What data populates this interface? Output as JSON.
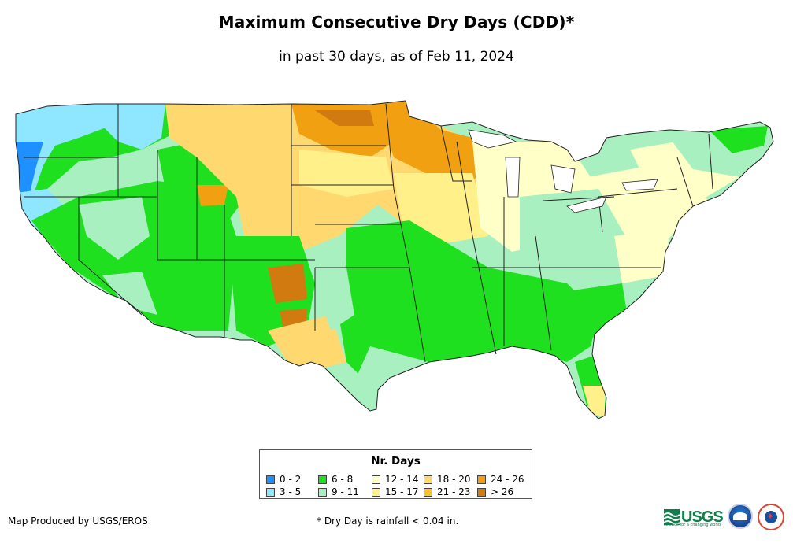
{
  "header": {
    "title": "Maximum Consecutive Dry Days (CDD)*",
    "subtitle": "in past 30 days, as of Feb 11, 2024"
  },
  "legend": {
    "title": "Nr. Days",
    "items": [
      {
        "label": "0 - 2",
        "color": "#1e90ff"
      },
      {
        "label": "3 - 5",
        "color": "#8ee6ff"
      },
      {
        "label": "6 - 8",
        "color": "#1fe01f"
      },
      {
        "label": "9 - 11",
        "color": "#a8f0c0"
      },
      {
        "label": "12 - 14",
        "color": "#ffffc8"
      },
      {
        "label": "15 - 17",
        "color": "#fff08a"
      },
      {
        "label": "18 - 20",
        "color": "#ffd970"
      },
      {
        "label": "21 - 23",
        "color": "#ffc02a"
      },
      {
        "label": "24 - 26",
        "color": "#f0a010"
      },
      {
        "label": "> 26",
        "color": "#d07a10"
      }
    ]
  },
  "footer": {
    "credit": "Map Produced by USGS/EROS",
    "note": "* Dry Day is rainfall < 0.04 in."
  },
  "logos": {
    "usgs": "USGS",
    "usgs_tagline": "science for a changing world",
    "noaa": "noaa"
  }
}
